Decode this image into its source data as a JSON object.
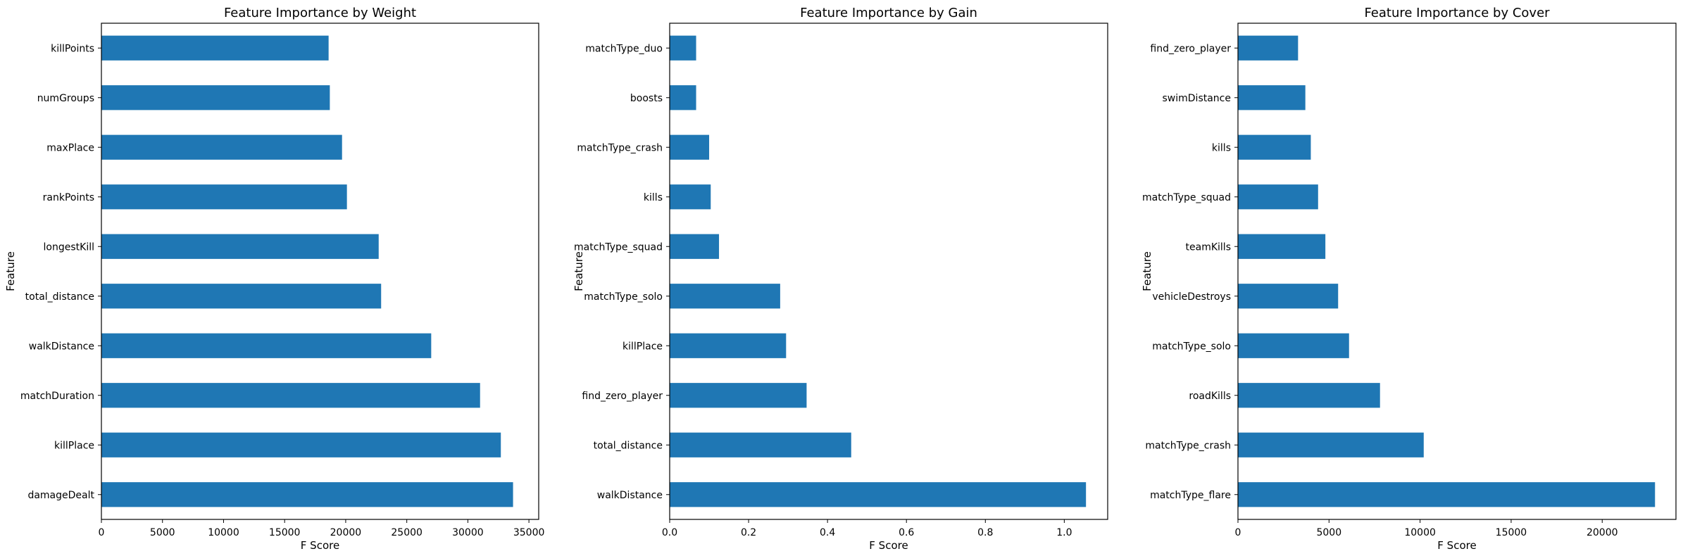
{
  "chart_data": [
    {
      "type": "bar",
      "orientation": "horizontal",
      "title": "Feature Importance by Weight",
      "xlabel": "F Score",
      "ylabel": "Feature",
      "xlim": [
        0,
        35800
      ],
      "xticks": [
        0,
        5000,
        10000,
        15000,
        20000,
        25000,
        30000,
        35000
      ],
      "xtick_labels": [
        "0",
        "5000",
        "10000",
        "15000",
        "20000",
        "25000",
        "30000",
        "35000"
      ],
      "categories": [
        "killPoints",
        "numGroups",
        "maxPlace",
        "rankPoints",
        "longestKill",
        "total_distance",
        "walkDistance",
        "matchDuration",
        "killPlace",
        "damageDealt"
      ],
      "values": [
        18600,
        18700,
        19700,
        20100,
        22700,
        22900,
        27000,
        31000,
        32700,
        33700
      ],
      "color": "#1f77b4",
      "grid": false
    },
    {
      "type": "bar",
      "orientation": "horizontal",
      "title": "Feature Importance by Gain",
      "xlabel": "F Score",
      "ylabel": "Feature",
      "xlim": [
        0,
        1.11
      ],
      "xticks": [
        0,
        0.2,
        0.4,
        0.6,
        0.8,
        1.0
      ],
      "xtick_labels": [
        "0.0",
        "0.2",
        "0.4",
        "0.6",
        "0.8",
        "1.0"
      ],
      "categories": [
        "matchType_duo",
        "boosts",
        "matchType_crash",
        "kills",
        "matchType_squad",
        "matchType_solo",
        "killPlace",
        "find_zero_player",
        "total_distance",
        "walkDistance"
      ],
      "values": [
        0.067,
        0.067,
        0.1,
        0.104,
        0.125,
        0.28,
        0.295,
        0.347,
        0.46,
        1.055
      ],
      "color": "#1f77b4",
      "grid": false
    },
    {
      "type": "bar",
      "orientation": "horizontal",
      "title": "Feature Importance by Cover",
      "xlabel": "F Score",
      "ylabel": "Feature",
      "xlim": [
        0,
        24050
      ],
      "xticks": [
        0,
        5000,
        10000,
        15000,
        20000
      ],
      "xtick_labels": [
        "0",
        "5000",
        "10000",
        "15000",
        "20000"
      ],
      "categories": [
        "find_zero_player",
        "swimDistance",
        "kills",
        "matchType_squad",
        "teamKills",
        "vehicleDestroys",
        "matchType_solo",
        "roadKills",
        "matchType_crash",
        "matchType_flare"
      ],
      "values": [
        3300,
        3700,
        4000,
        4400,
        4800,
        5500,
        6100,
        7800,
        10200,
        22900
      ],
      "color": "#1f77b4",
      "grid": false
    }
  ]
}
